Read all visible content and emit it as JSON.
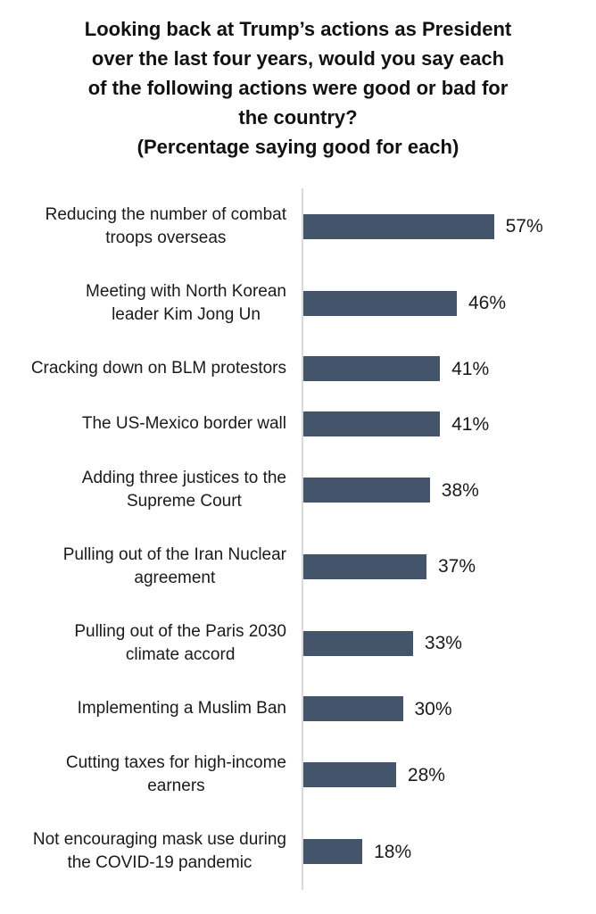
{
  "chart_data": {
    "type": "bar",
    "orientation": "horizontal",
    "title": "Looking back at Trump’s actions as President\nover the last four years, would you say each\nof the following actions were good or bad for\nthe country?\n(Percentage saying good for each)",
    "categories": [
      "Reducing the number of combat\ntroops overseas",
      "Meeting with North Korean\nleader Kim Jong Un",
      "Cracking down on BLM protestors",
      "The US-Mexico border wall",
      "Adding three justices to the\nSupreme Court",
      "Pulling out of the Iran Nuclear\nagreement",
      "Pulling out of the Paris 2030\nclimate accord",
      "Implementing a Muslim Ban",
      "Cutting taxes for high-income\nearners",
      "Not encouraging mask use during\nthe COVID-19 pandemic"
    ],
    "values": [
      57,
      46,
      41,
      41,
      38,
      37,
      33,
      30,
      28,
      18
    ],
    "value_labels": [
      "57%",
      "46%",
      "41%",
      "41%",
      "38%",
      "37%",
      "33%",
      "30%",
      "28%",
      "18%"
    ],
    "xlabel": "",
    "ylabel": "",
    "xlim": [
      0,
      60
    ],
    "grid": false,
    "legend": false,
    "bar_color": "#44546a",
    "axis_line_color": "#d9d9d9"
  }
}
